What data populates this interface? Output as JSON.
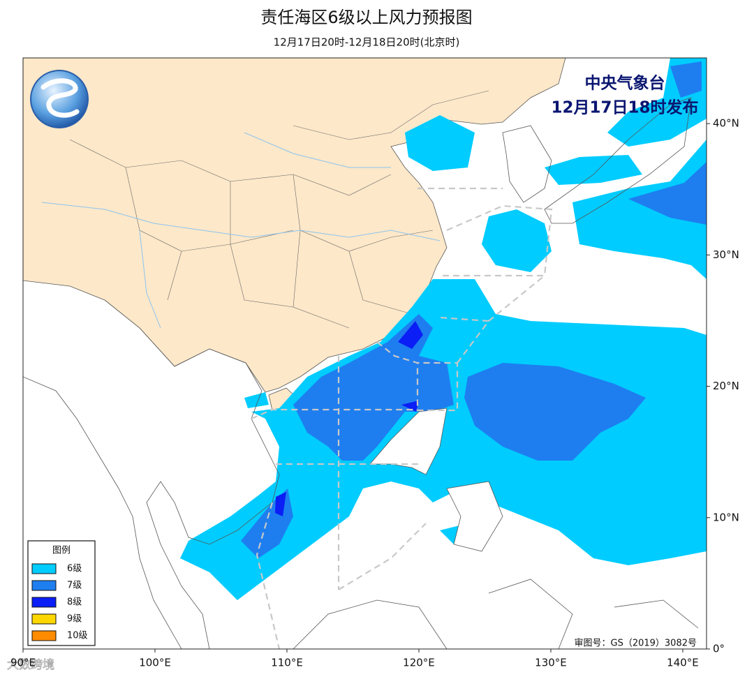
{
  "header": {
    "title": "责任海区6级以上风力预报图",
    "subtitle": "12月17日20时-12月18日20时(北京时)"
  },
  "issuer": {
    "name": "中央气象台",
    "time": "12月17日18时发布"
  },
  "legend": {
    "title": "图例",
    "items": [
      {
        "label": "6级",
        "color": "#00ccff"
      },
      {
        "label": "7级",
        "color": "#1e7ef0"
      },
      {
        "label": "8级",
        "color": "#0a1ef5"
      },
      {
        "label": "9级",
        "color": "#ffd700"
      },
      {
        "label": "10级",
        "color": "#ff8c00"
      }
    ]
  },
  "axes": {
    "xlim": [
      90,
      141.8
    ],
    "ylim": [
      0,
      45
    ],
    "xticks": [
      {
        "value": 90,
        "label": "90°E"
      },
      {
        "value": 100,
        "label": "100°E"
      },
      {
        "value": 110,
        "label": "110°E"
      },
      {
        "value": 120,
        "label": "120°E"
      },
      {
        "value": 130,
        "label": "130°E"
      },
      {
        "value": 140,
        "label": "140°E"
      }
    ],
    "yticks": [
      {
        "value": 0,
        "label": "0°"
      },
      {
        "value": 10,
        "label": "10°N"
      },
      {
        "value": 20,
        "label": "20°N"
      },
      {
        "value": 30,
        "label": "30°N"
      },
      {
        "value": 40,
        "label": "40°N"
      }
    ]
  },
  "approval": "审图号：GS（2019）3082号",
  "watermark": "大数跨境"
}
